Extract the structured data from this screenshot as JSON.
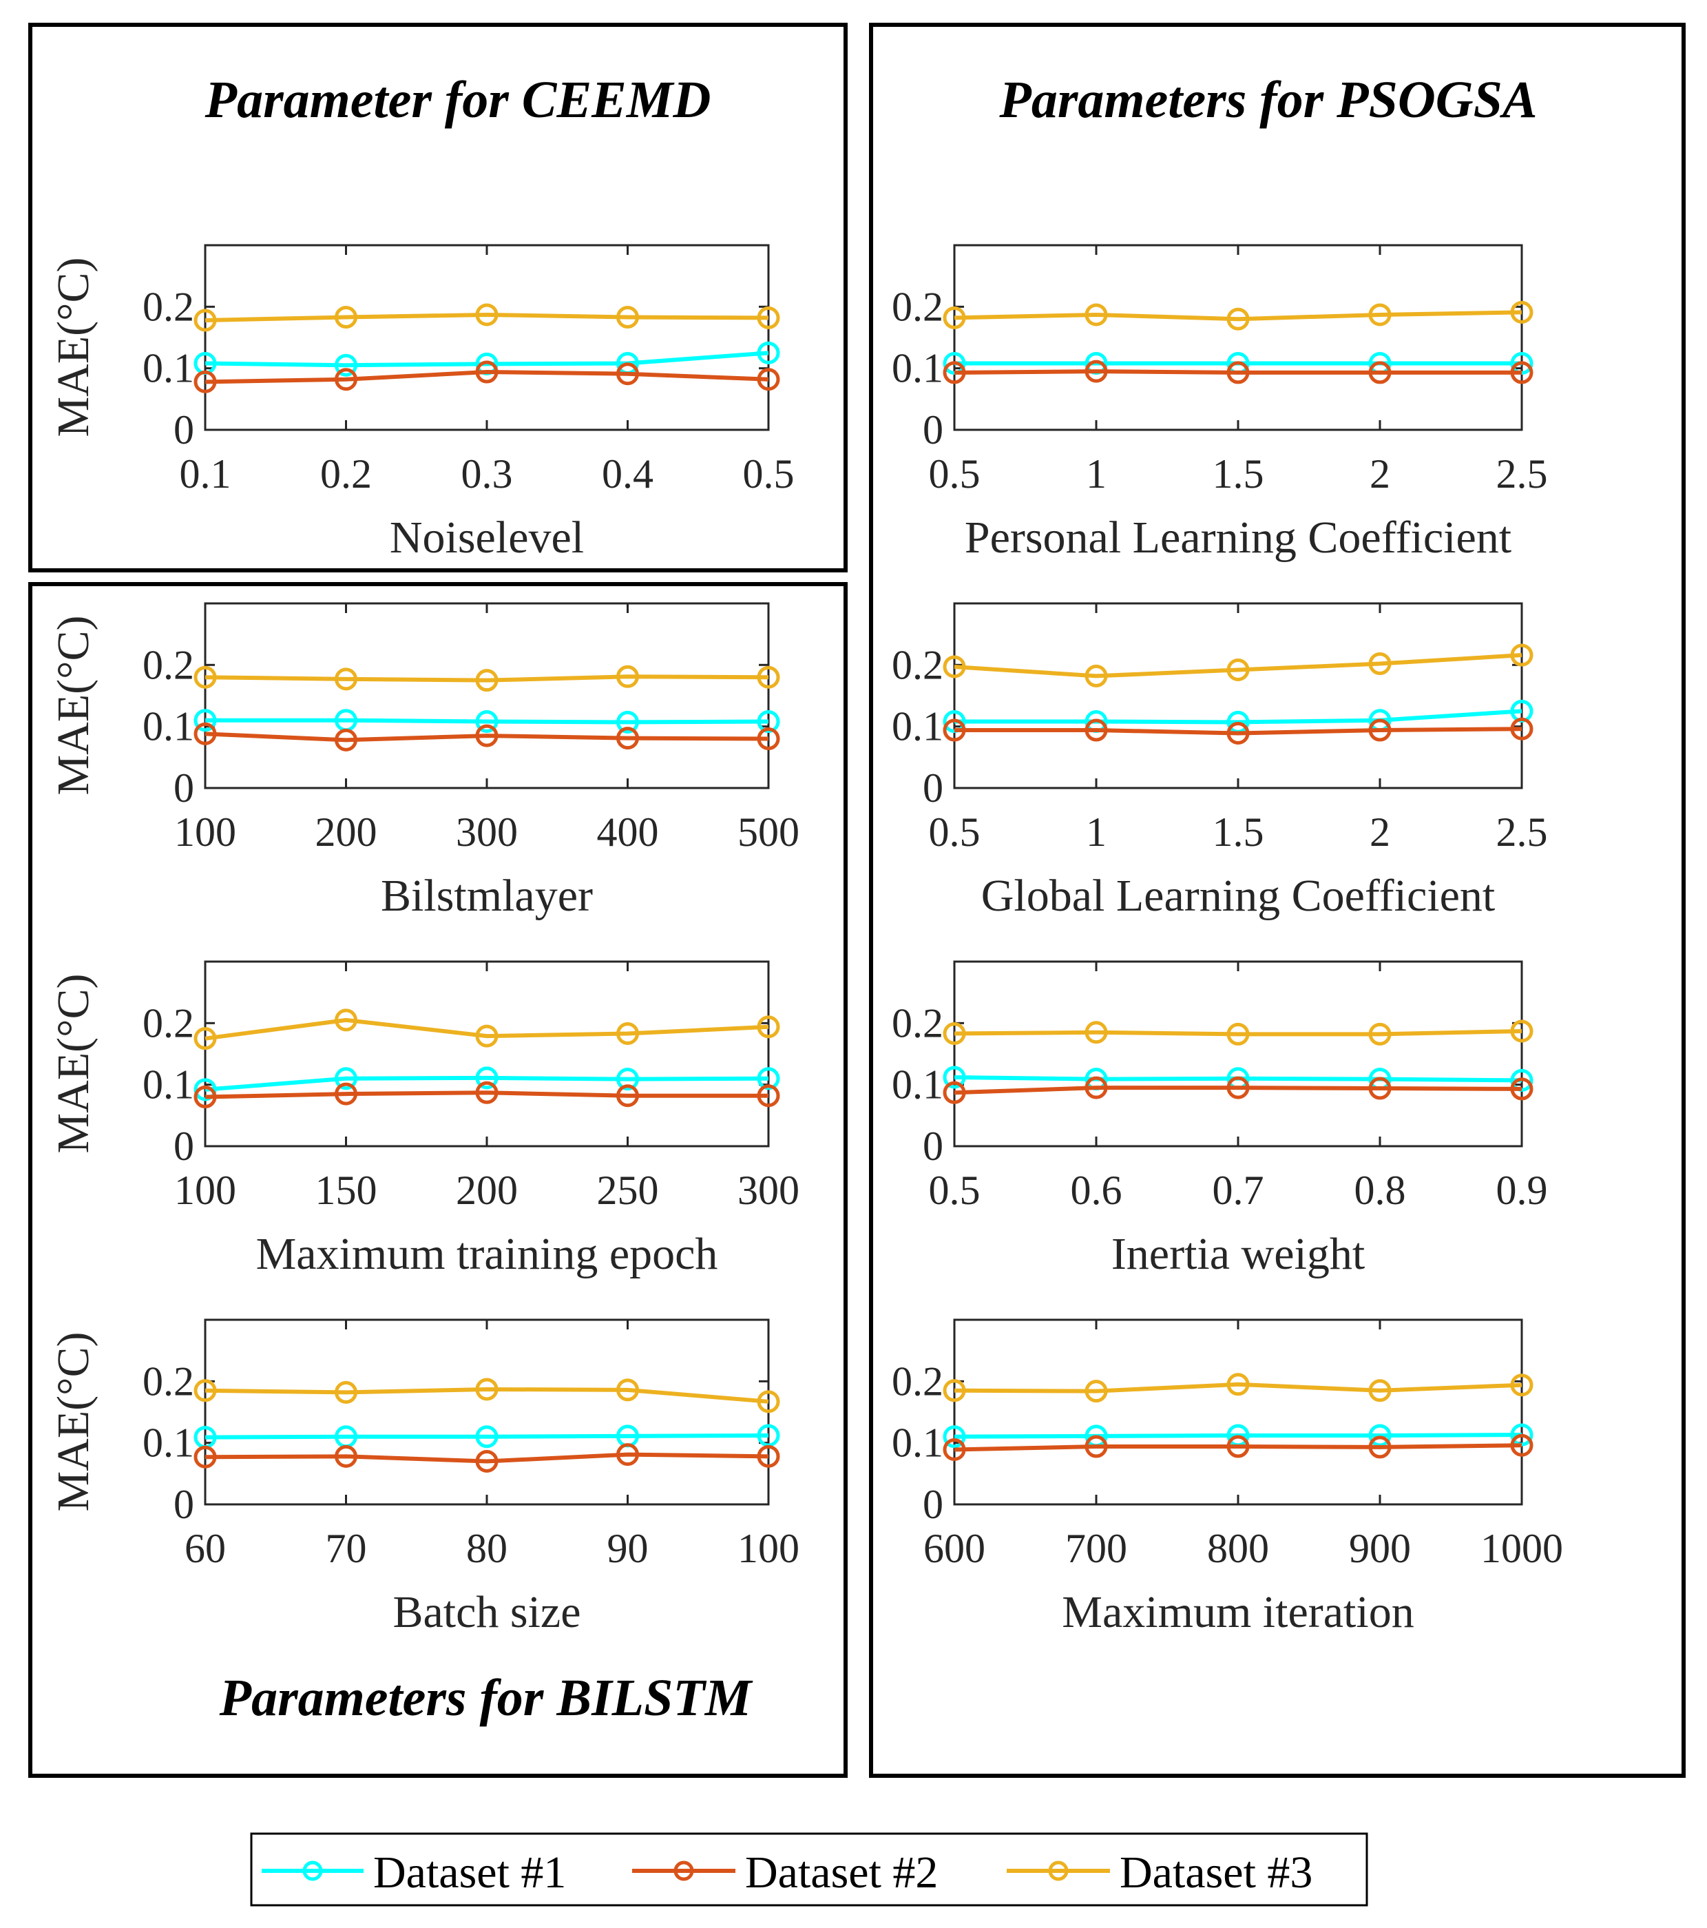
{
  "groups": {
    "ceemd_title": "Parameter for CEEMD",
    "psogsa_title": "Parameters for PSOGSA",
    "bilstm_title": "Parameters for BILSTM"
  },
  "legend": [
    {
      "name": "Dataset #1",
      "color": "#00FFFF"
    },
    {
      "name": "Dataset #2",
      "color": "#D95319"
    },
    {
      "name": "Dataset #3",
      "color": "#EDB120"
    }
  ],
  "chart_data": [
    {
      "type": "line",
      "xlabel": "Noiselevel",
      "ylabel": "MAE(°C)",
      "x": [
        "0.1",
        "0.2",
        "0.3",
        "0.4",
        "0.5"
      ],
      "ylim": [
        0,
        0.3
      ],
      "yticks": [
        "0",
        "0.1",
        "0.2"
      ],
      "series": [
        {
          "name": "Dataset #1",
          "values": [
            0.108,
            0.105,
            0.107,
            0.108,
            0.125
          ]
        },
        {
          "name": "Dataset #2",
          "values": [
            0.078,
            0.082,
            0.094,
            0.091,
            0.082
          ]
        },
        {
          "name": "Dataset #3",
          "values": [
            0.178,
            0.183,
            0.187,
            0.183,
            0.182
          ]
        }
      ]
    },
    {
      "type": "line",
      "xlabel": "Personal Learning Coefficient",
      "ylabel": "",
      "x": [
        "0.5",
        "1",
        "1.5",
        "2",
        "2.5"
      ],
      "ylim": [
        0,
        0.3
      ],
      "yticks": [
        "0",
        "0.1",
        "0.2"
      ],
      "series": [
        {
          "name": "Dataset #1",
          "values": [
            0.108,
            0.108,
            0.108,
            0.108,
            0.108
          ]
        },
        {
          "name": "Dataset #2",
          "values": [
            0.093,
            0.095,
            0.093,
            0.093,
            0.093
          ]
        },
        {
          "name": "Dataset #3",
          "values": [
            0.182,
            0.187,
            0.18,
            0.187,
            0.191
          ]
        }
      ]
    },
    {
      "type": "line",
      "xlabel": "Bilstmlayer",
      "ylabel": "MAE(°C)",
      "x": [
        "100",
        "200",
        "300",
        "400",
        "500"
      ],
      "ylim": [
        0,
        0.3
      ],
      "yticks": [
        "0",
        "0.1",
        "0.2"
      ],
      "series": [
        {
          "name": "Dataset #1",
          "values": [
            0.11,
            0.11,
            0.108,
            0.107,
            0.108
          ]
        },
        {
          "name": "Dataset #2",
          "values": [
            0.088,
            0.078,
            0.085,
            0.081,
            0.08
          ]
        },
        {
          "name": "Dataset #3",
          "values": [
            0.18,
            0.177,
            0.175,
            0.181,
            0.18
          ]
        }
      ]
    },
    {
      "type": "line",
      "xlabel": "Global Learning Coefficient",
      "ylabel": "",
      "x": [
        "0.5",
        "1",
        "1.5",
        "2",
        "2.5"
      ],
      "ylim": [
        0,
        0.3
      ],
      "yticks": [
        "0",
        "0.1",
        "0.2"
      ],
      "series": [
        {
          "name": "Dataset #1",
          "values": [
            0.108,
            0.108,
            0.107,
            0.11,
            0.125
          ]
        },
        {
          "name": "Dataset #2",
          "values": [
            0.094,
            0.094,
            0.089,
            0.094,
            0.096
          ]
        },
        {
          "name": "Dataset #3",
          "values": [
            0.197,
            0.182,
            0.192,
            0.202,
            0.216
          ]
        }
      ]
    },
    {
      "type": "line",
      "xlabel": "Maximum training epoch",
      "ylabel": "MAE(°C)",
      "x": [
        "100",
        "150",
        "200",
        "250",
        "300"
      ],
      "ylim": [
        0,
        0.3
      ],
      "yticks": [
        "0",
        "0.1",
        "0.2"
      ],
      "series": [
        {
          "name": "Dataset #1",
          "values": [
            0.092,
            0.11,
            0.111,
            0.109,
            0.11
          ]
        },
        {
          "name": "Dataset #2",
          "values": [
            0.08,
            0.085,
            0.087,
            0.082,
            0.082
          ]
        },
        {
          "name": "Dataset #3",
          "values": [
            0.175,
            0.205,
            0.179,
            0.183,
            0.194
          ]
        }
      ]
    },
    {
      "type": "line",
      "xlabel": "Inertia weight",
      "ylabel": "",
      "x": [
        "0.5",
        "0.6",
        "0.7",
        "0.8",
        "0.9"
      ],
      "ylim": [
        0,
        0.3
      ],
      "yticks": [
        "0",
        "0.1",
        "0.2"
      ],
      "series": [
        {
          "name": "Dataset #1",
          "values": [
            0.112,
            0.109,
            0.11,
            0.109,
            0.107
          ]
        },
        {
          "name": "Dataset #2",
          "values": [
            0.087,
            0.095,
            0.095,
            0.094,
            0.093
          ]
        },
        {
          "name": "Dataset #3",
          "values": [
            0.183,
            0.185,
            0.182,
            0.182,
            0.187
          ]
        }
      ]
    },
    {
      "type": "line",
      "xlabel": "Batch size",
      "ylabel": "MAE(°C)",
      "x": [
        "60",
        "70",
        "80",
        "90",
        "100"
      ],
      "ylim": [
        0,
        0.3
      ],
      "yticks": [
        "0",
        "0.1",
        "0.2"
      ],
      "series": [
        {
          "name": "Dataset #1",
          "values": [
            0.109,
            0.11,
            0.11,
            0.111,
            0.112
          ]
        },
        {
          "name": "Dataset #2",
          "values": [
            0.077,
            0.078,
            0.07,
            0.081,
            0.078
          ]
        },
        {
          "name": "Dataset #3",
          "values": [
            0.185,
            0.182,
            0.187,
            0.186,
            0.167
          ]
        }
      ]
    },
    {
      "type": "line",
      "xlabel": "Maximum iteration",
      "ylabel": "",
      "x": [
        "600",
        "700",
        "800",
        "900",
        "1000"
      ],
      "ylim": [
        0,
        0.3
      ],
      "yticks": [
        "0",
        "0.1",
        "0.2"
      ],
      "series": [
        {
          "name": "Dataset #1",
          "values": [
            0.11,
            0.111,
            0.112,
            0.112,
            0.113
          ]
        },
        {
          "name": "Dataset #2",
          "values": [
            0.089,
            0.094,
            0.094,
            0.093,
            0.096
          ]
        },
        {
          "name": "Dataset #3",
          "values": [
            0.185,
            0.184,
            0.195,
            0.185,
            0.194
          ]
        }
      ]
    }
  ]
}
